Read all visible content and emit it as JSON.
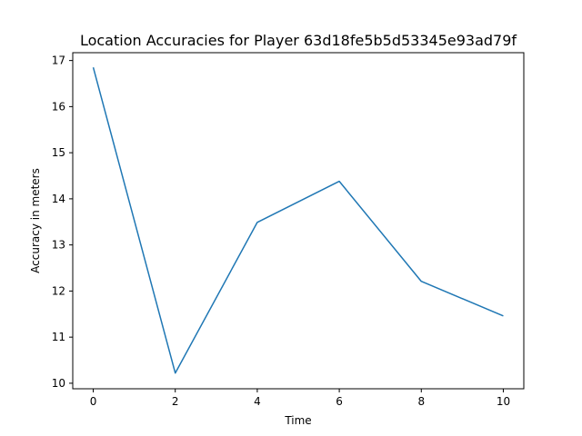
{
  "chart_data": {
    "type": "line",
    "title": "Location Accuracies for Player 63d18fe5b5d53345e93ad79f",
    "xlabel": "Time",
    "ylabel": "Accuracy in meters",
    "xlim": [
      -0.5,
      10.5
    ],
    "ylim": [
      9.88,
      17.17
    ],
    "xticks": [
      0,
      2,
      4,
      6,
      8,
      10
    ],
    "yticks": [
      10,
      11,
      12,
      13,
      14,
      15,
      16,
      17
    ],
    "grid": false,
    "series": [
      {
        "color": "#1f77b4",
        "x": [
          0,
          2,
          4,
          6,
          8,
          10
        ],
        "y": [
          16.85,
          10.22,
          13.49,
          14.38,
          12.21,
          11.46
        ]
      }
    ]
  }
}
